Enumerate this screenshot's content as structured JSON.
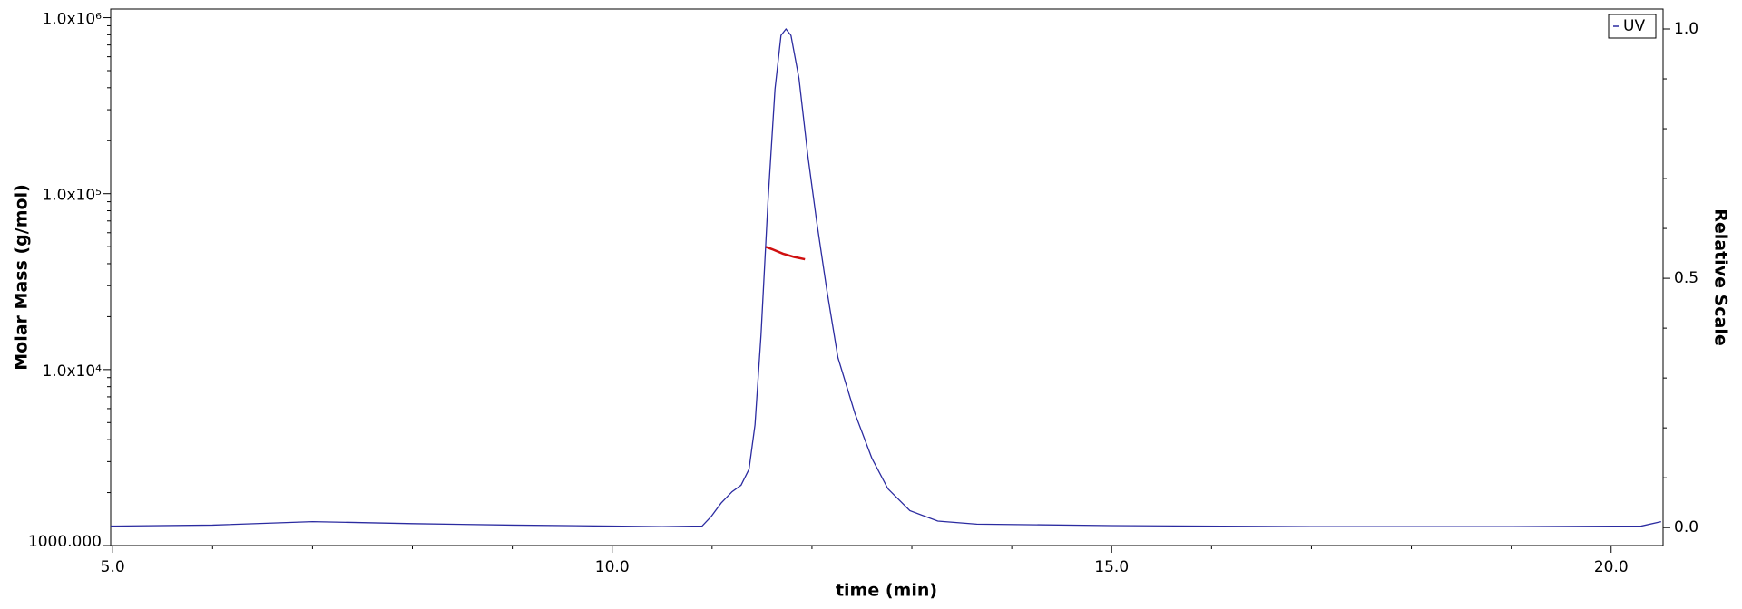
{
  "chart_data": {
    "type": "line",
    "xlabel": "time (min)",
    "ylabel": "Molar Mass (g/mol)",
    "y2label": "Relative Scale",
    "xlim": [
      4.98,
      20.52
    ],
    "xticks": [
      {
        "value": 5,
        "label": "5.0"
      },
      {
        "value": 10,
        "label": "10.0"
      },
      {
        "value": 15,
        "label": "15.0"
      },
      {
        "value": 20,
        "label": "20.0"
      }
    ],
    "xminorticks": [
      6,
      7,
      8,
      9,
      11,
      12,
      13,
      14,
      16,
      17,
      18,
      19
    ],
    "ylog": true,
    "ylim": [
      1000,
      1120000
    ],
    "yticks": [
      {
        "value": 1000,
        "label": "1000.000"
      },
      {
        "value": 10000,
        "label": "1.0x10⁴"
      },
      {
        "value": 100000,
        "label": "1.0x10⁵"
      },
      {
        "value": 1000000,
        "label": "1.0x10⁶"
      }
    ],
    "yminorticks": [
      2000,
      3000,
      4000,
      5000,
      6000,
      7000,
      8000,
      9000,
      20000,
      30000,
      40000,
      50000,
      60000,
      70000,
      80000,
      90000,
      200000,
      300000,
      400000,
      500000,
      600000,
      700000,
      800000,
      900000
    ],
    "y2lim": [
      -0.036,
      1.04
    ],
    "y2ticks": [
      {
        "value": 0,
        "label": "0.0"
      },
      {
        "value": 0.5,
        "label": "0.5"
      },
      {
        "value": 1,
        "label": "1.0"
      }
    ],
    "y2minorticks": [
      0.1,
      0.2,
      0.3,
      0.4,
      0.6,
      0.7,
      0.8,
      0.9
    ],
    "legend": "top-right",
    "series": [
      {
        "name": "UV",
        "color": "#2b2ba0",
        "axis": "y2",
        "x": [
          4.98,
          6.0,
          7.0,
          8.0,
          9.0,
          10.0,
          10.5,
          10.9,
          10.99,
          11.09,
          11.2,
          11.29,
          11.37,
          11.43,
          11.49,
          11.56,
          11.63,
          11.69,
          11.74,
          11.79,
          11.87,
          11.96,
          12.05,
          12.15,
          12.26,
          12.43,
          12.6,
          12.76,
          12.98,
          13.26,
          13.65,
          15.0,
          17.0,
          19.0,
          20.3,
          20.5
        ],
        "values": [
          0.003,
          0.005,
          0.012,
          0.008,
          0.005,
          0.003,
          0.002,
          0.003,
          0.022,
          0.049,
          0.072,
          0.085,
          0.117,
          0.206,
          0.386,
          0.655,
          0.879,
          0.987,
          1.0,
          0.987,
          0.901,
          0.744,
          0.61,
          0.475,
          0.341,
          0.229,
          0.139,
          0.078,
          0.034,
          0.013,
          0.007,
          0.004,
          0.002,
          0.002,
          0.003,
          0.012
        ]
      },
      {
        "color": "#d01010",
        "x": [
          11.54,
          11.6,
          11.71,
          11.82,
          11.93
        ],
        "values": [
          49800,
          48400,
          45600,
          43700,
          42400
        ]
      }
    ]
  }
}
